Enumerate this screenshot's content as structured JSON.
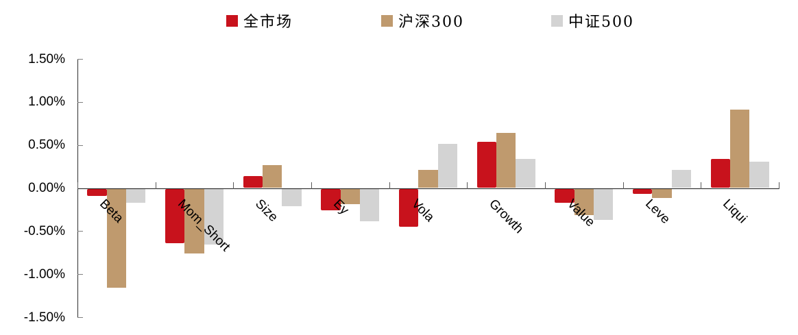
{
  "legend": {
    "items": [
      {
        "label": "全市场",
        "color": "#c8121c"
      },
      {
        "label": "沪深300",
        "color": "#bf9a6e"
      },
      {
        "label": "中证500",
        "color": "#d3d3d3"
      }
    ]
  },
  "y_axis": {
    "tick_labels": [
      "1.50%",
      "1.00%",
      "0.50%",
      "0.00%",
      "-0.50%",
      "-1.00%",
      "-1.50%"
    ]
  },
  "chart_data": {
    "type": "bar",
    "title": "",
    "xlabel": "",
    "ylabel": "",
    "categories": [
      "Beta",
      "Mom_Short",
      "Size",
      "Ey",
      "Vola",
      "Growth",
      "Value",
      "Leve",
      "Liqui"
    ],
    "series": [
      {
        "name": "全市场",
        "color": "#c8121c",
        "values": [
          -0.08,
          -0.63,
          0.14,
          -0.25,
          -0.44,
          0.54,
          -0.16,
          -0.06,
          0.34
        ]
      },
      {
        "name": "沪深300",
        "color": "#bf9a6e",
        "values": [
          -1.15,
          -0.75,
          0.27,
          -0.18,
          0.21,
          0.64,
          -0.31,
          -0.11,
          0.91
        ]
      },
      {
        "name": "中证500",
        "color": "#d3d3d3",
        "values": [
          -0.16,
          -0.65,
          -0.2,
          -0.38,
          0.51,
          0.34,
          -0.36,
          0.21,
          0.31
        ]
      }
    ],
    "value_unit": "%",
    "ylim": [
      -1.5,
      1.5
    ],
    "y_step": 0.5,
    "grid": false,
    "legend_position": "top",
    "category_label_rotation_deg": 45
  }
}
